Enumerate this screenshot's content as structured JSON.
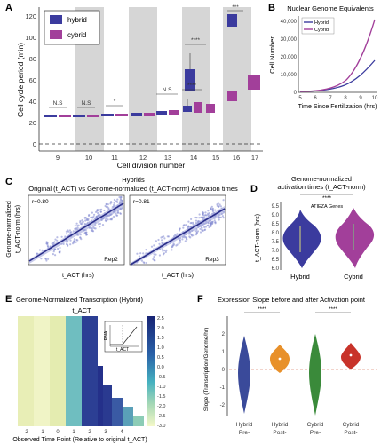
{
  "panels": {
    "A": {
      "letter": "A",
      "ylabel": "Cell cycle period (min)",
      "xlabel": "Cell division number",
      "yticks": [
        "0",
        "20",
        "40",
        "60",
        "80",
        "100",
        "120"
      ],
      "legend": [
        {
          "label": "hybrid",
          "color": "#3b3b9e"
        },
        {
          "label": "cybrid",
          "color": "#a23f9a"
        }
      ],
      "divisions": [
        "9",
        "10",
        "11",
        "12",
        "13",
        "14",
        "15",
        "16",
        "17"
      ],
      "significance": [
        "N.S",
        "N.S",
        "*",
        "N.S",
        "****",
        "****",
        "***"
      ]
    },
    "B": {
      "letter": "B",
      "title": "Nuclear Genome Equivalents",
      "ylabel": "Cell Number",
      "xlabel": "Time Since Fertilization (hrs)",
      "yticks": [
        "0",
        "10,000",
        "20,000",
        "30,000",
        "40,000"
      ],
      "xticks": [
        "5",
        "6",
        "7",
        "8",
        "9",
        "10"
      ],
      "legend": [
        "Hybrid",
        "Cybrid"
      ]
    },
    "C": {
      "letter": "C",
      "title1": "Hybrids",
      "title2": "Original (t_ACT) vs Genome-normalized (t_ACT-norm) Activation times",
      "ylabel": "Genome-normalized",
      "ylabel2": "t_ACT-norm (hrs)",
      "xlabel": "t_ACT (hrs)",
      "subplots": [
        {
          "r": "r=0.80",
          "rep": "Rep2"
        },
        {
          "r": "r=0.81",
          "rep": "Rep3"
        }
      ]
    },
    "D": {
      "letter": "D",
      "title1": "Genome-normalized",
      "title2": "activation times (t_ACT-norm)",
      "sig": "****",
      "inner_label": "ATIEZA Genes",
      "ylabel": "t_ACT-norm (hrs)",
      "yticks": [
        "9.5",
        "9.0",
        "8.5",
        "8.0",
        "7.5",
        "7.0",
        "6.5",
        "6.0"
      ],
      "xlabels": [
        "Hybrid",
        "Cybrid"
      ]
    },
    "E": {
      "letter": "E",
      "title": "Genome-Normalized Transcription (Hybrid)",
      "tag": "t_ACT",
      "xlabel": "Observed Time Point (Relative to original t_ACT)",
      "xticks": [
        "-2",
        "-1",
        "0",
        "1",
        "2",
        "3",
        "4"
      ],
      "colorbar_ticks": [
        "2.5",
        "2.0",
        "1.5",
        "1.0",
        "0.5",
        "0.0",
        "-0.5",
        "-1.0",
        "-1.5",
        "-2.0",
        "-2.5",
        "-3.0"
      ],
      "inset_y": "RNA",
      "inset_x": "t_ACT"
    },
    "F": {
      "letter": "F",
      "title": "Expression Slope before and after Activation point",
      "ylabel": "Slope (Transcription/Genome/hr)",
      "yticks": [
        "2",
        "1",
        "0",
        "-1",
        "-2"
      ],
      "sig": [
        "****",
        "****"
      ],
      "groups": [
        {
          "label1": "Hybrid",
          "label2": "Pre-",
          "color": "#3a4a9a"
        },
        {
          "label1": "Hybrid",
          "label2": "Post-",
          "color": "#e8902a"
        },
        {
          "label1": "Cybrid",
          "label2": "Pre-",
          "color": "#3a8a3a"
        },
        {
          "label1": "Cybrid",
          "label2": "Post-",
          "color": "#c8332a"
        }
      ]
    }
  }
}
